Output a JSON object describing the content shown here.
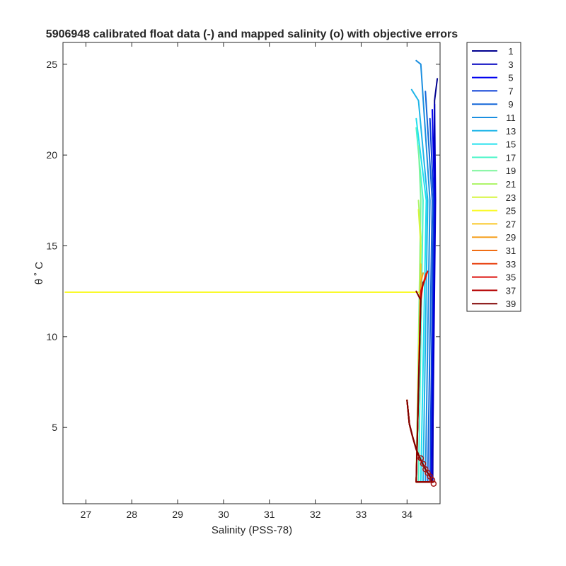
{
  "chart_data": {
    "type": "line",
    "title": "5906948 calibrated float data (-) and mapped salinity (o) with objective errors",
    "xlabel": "Salinity (PSS-78)",
    "ylabel": "θ ˚ C",
    "xlim": [
      26.5,
      34.72
    ],
    "ylim": [
      0.8,
      26.2
    ],
    "xticks": [
      "27",
      "28",
      "29",
      "30",
      "31",
      "32",
      "33",
      "34"
    ],
    "yticks": [
      "5",
      "10",
      "15",
      "20",
      "25"
    ],
    "grid": false,
    "legend_position": "outside-right",
    "legend": [
      "1",
      "3",
      "5",
      "7",
      "9",
      "11",
      "13",
      "15",
      "17",
      "19",
      "21",
      "23",
      "25",
      "27",
      "29",
      "31",
      "33",
      "35",
      "37",
      "39"
    ],
    "series": [
      {
        "name": "1",
        "color": "#00008f",
        "x": [
          34.0,
          34.05,
          34.12,
          34.2,
          34.3,
          34.4,
          34.5,
          34.55,
          34.56,
          34.6,
          34.66
        ],
        "y": [
          6.5,
          5.2,
          4.5,
          3.8,
          3.2,
          2.7,
          2.3,
          2.0,
          2.0,
          23.0,
          24.2
        ]
      },
      {
        "name": "3",
        "color": "#0000bf",
        "x": [
          34.0,
          34.05,
          34.12,
          34.2,
          34.3,
          34.4,
          34.5,
          34.55,
          34.55,
          34.62,
          34.6
        ],
        "y": [
          6.5,
          5.2,
          4.5,
          3.8,
          3.2,
          2.7,
          2.3,
          2.0,
          2.0,
          17.5,
          22.8
        ]
      },
      {
        "name": "5",
        "color": "#0000ef",
        "x": [
          34.0,
          34.05,
          34.12,
          34.2,
          34.3,
          34.4,
          34.5,
          34.55,
          34.52,
          34.6,
          34.55
        ],
        "y": [
          6.5,
          5.2,
          4.5,
          3.8,
          3.2,
          2.7,
          2.3,
          2.0,
          2.0,
          17.5,
          22.5
        ]
      },
      {
        "name": "7",
        "color": "#0a3fd6",
        "x": [
          34.0,
          34.05,
          34.12,
          34.2,
          34.3,
          34.4,
          34.5,
          34.55,
          34.5,
          34.58,
          34.5
        ],
        "y": [
          6.5,
          5.2,
          4.5,
          3.8,
          3.2,
          2.7,
          2.3,
          2.0,
          2.0,
          17.5,
          22.0
        ]
      },
      {
        "name": "9",
        "color": "#1467d8",
        "x": [
          34.0,
          34.05,
          34.12,
          34.2,
          34.3,
          34.4,
          34.5,
          34.55,
          34.45,
          34.55,
          34.4
        ],
        "y": [
          6.5,
          5.2,
          4.5,
          3.8,
          3.2,
          2.7,
          2.3,
          2.0,
          2.0,
          17.5,
          23.5
        ]
      },
      {
        "name": "11",
        "color": "#1b8fe0",
        "x": [
          34.0,
          34.05,
          34.12,
          34.2,
          34.3,
          34.4,
          34.5,
          34.55,
          34.4,
          34.5,
          34.3,
          34.2
        ],
        "y": [
          6.5,
          5.2,
          4.5,
          3.8,
          3.2,
          2.7,
          2.3,
          2.0,
          2.0,
          17.5,
          25.0,
          25.2
        ]
      },
      {
        "name": "13",
        "color": "#1fb5e8",
        "x": [
          34.0,
          34.05,
          34.12,
          34.2,
          34.3,
          34.4,
          34.5,
          34.55,
          34.35,
          34.45,
          34.25,
          34.1
        ],
        "y": [
          6.5,
          5.2,
          4.5,
          3.8,
          3.2,
          2.7,
          2.3,
          2.0,
          2.0,
          17.5,
          23.0,
          23.6
        ]
      },
      {
        "name": "15",
        "color": "#22e0ee",
        "x": [
          34.0,
          34.05,
          34.12,
          34.2,
          34.3,
          34.4,
          34.5,
          34.55,
          34.3,
          34.42,
          34.2
        ],
        "y": [
          6.5,
          5.2,
          4.5,
          3.8,
          3.2,
          2.7,
          2.3,
          2.0,
          2.0,
          17.5,
          22.0
        ]
      },
      {
        "name": "17",
        "color": "#4ef5c9",
        "x": [
          34.0,
          34.05,
          34.12,
          34.2,
          34.3,
          34.4,
          34.5,
          34.55,
          34.25,
          34.35,
          34.2
        ],
        "y": [
          6.5,
          5.2,
          4.5,
          3.8,
          3.2,
          2.7,
          2.3,
          2.0,
          2.0,
          17.5,
          21.5
        ]
      },
      {
        "name": "19",
        "color": "#7df59c",
        "x": [
          34.0,
          34.05,
          34.12,
          34.2,
          34.3,
          34.4,
          34.5,
          34.55,
          34.2,
          34.3,
          34.25
        ],
        "y": [
          6.5,
          5.2,
          4.5,
          3.8,
          3.2,
          2.7,
          2.3,
          2.0,
          2.0,
          17.5,
          20.5
        ]
      },
      {
        "name": "21",
        "color": "#aef56a",
        "x": [
          34.0,
          34.05,
          34.12,
          34.2,
          34.3,
          34.4,
          34.5,
          34.55,
          34.2,
          34.3,
          34.25
        ],
        "y": [
          6.5,
          5.2,
          4.5,
          3.8,
          3.2,
          2.7,
          2.3,
          2.0,
          2.0,
          15.5,
          17.5
        ]
      },
      {
        "name": "23",
        "color": "#d6f53e",
        "x": [
          34.0,
          34.05,
          34.12,
          34.2,
          34.3,
          34.4,
          34.5,
          34.55,
          34.2,
          34.3,
          34.25
        ],
        "y": [
          6.5,
          5.2,
          4.5,
          3.8,
          3.2,
          2.7,
          2.3,
          2.0,
          2.0,
          15.0,
          17.0
        ]
      },
      {
        "name": "25",
        "color": "#fafa2b",
        "x": [
          34.0,
          34.05,
          34.12,
          34.2,
          34.3,
          34.4,
          34.5,
          34.55,
          34.2,
          34.3,
          26.55
        ],
        "y": [
          6.5,
          5.2,
          4.5,
          3.8,
          3.2,
          2.7,
          2.3,
          2.0,
          2.0,
          12.45,
          12.45
        ]
      },
      {
        "name": "27",
        "color": "#fac828",
        "x": [
          34.0,
          34.05,
          34.12,
          34.2,
          34.3,
          34.4,
          34.5,
          34.55,
          34.2,
          34.3,
          34.3
        ],
        "y": [
          6.5,
          5.2,
          4.5,
          3.8,
          3.2,
          2.7,
          2.3,
          2.0,
          2.0,
          13.0,
          14.0
        ]
      },
      {
        "name": "29",
        "color": "#f5a01e",
        "x": [
          34.0,
          34.05,
          34.12,
          34.2,
          34.3,
          34.4,
          34.5,
          34.55,
          34.2,
          34.3,
          34.35
        ],
        "y": [
          6.5,
          5.2,
          4.5,
          3.8,
          3.2,
          2.7,
          2.3,
          2.0,
          2.0,
          13.0,
          13.5
        ]
      },
      {
        "name": "31",
        "color": "#f06e14",
        "x": [
          34.0,
          34.05,
          34.12,
          34.2,
          34.3,
          34.4,
          34.5,
          34.55,
          34.2,
          34.3,
          34.4
        ],
        "y": [
          6.5,
          5.2,
          4.5,
          3.8,
          3.2,
          2.7,
          2.3,
          2.0,
          2.0,
          12.5,
          13.2
        ]
      },
      {
        "name": "33",
        "color": "#e8400f",
        "x": [
          34.0,
          34.05,
          34.12,
          34.2,
          34.3,
          34.4,
          34.5,
          34.55,
          34.2,
          34.3,
          34.42
        ],
        "y": [
          6.5,
          5.2,
          4.5,
          3.8,
          3.2,
          2.7,
          2.3,
          2.0,
          2.0,
          12.5,
          13.5
        ]
      },
      {
        "name": "35",
        "color": "#dc0f0a",
        "x": [
          34.0,
          34.05,
          34.12,
          34.2,
          34.3,
          34.4,
          34.5,
          34.55,
          34.2,
          34.3,
          34.45
        ],
        "y": [
          6.5,
          5.2,
          4.5,
          3.8,
          3.2,
          2.7,
          2.3,
          2.0,
          2.0,
          12.5,
          13.6
        ]
      },
      {
        "name": "37",
        "color": "#b40000",
        "x": [
          34.0,
          34.05,
          34.12,
          34.2,
          34.3,
          34.4,
          34.5,
          34.55,
          34.2,
          34.3,
          34.35
        ],
        "y": [
          6.5,
          5.2,
          4.5,
          3.8,
          3.2,
          2.7,
          2.3,
          2.0,
          2.0,
          12.0,
          13.0
        ]
      },
      {
        "name": "39",
        "color": "#800000",
        "x": [
          34.0,
          34.05,
          34.12,
          34.2,
          34.3,
          34.4,
          34.5,
          34.55,
          34.2,
          34.3,
          34.2
        ],
        "y": [
          6.5,
          5.2,
          4.5,
          3.8,
          3.2,
          2.7,
          2.3,
          2.0,
          2.0,
          12.0,
          12.5
        ]
      }
    ],
    "mapped_salinity_markers": {
      "color": "#a01010",
      "x": [
        34.3,
        34.35,
        34.4,
        34.45,
        34.5,
        34.55,
        34.58
      ],
      "y": [
        3.3,
        3.0,
        2.7,
        2.5,
        2.3,
        2.1,
        1.9
      ]
    }
  }
}
